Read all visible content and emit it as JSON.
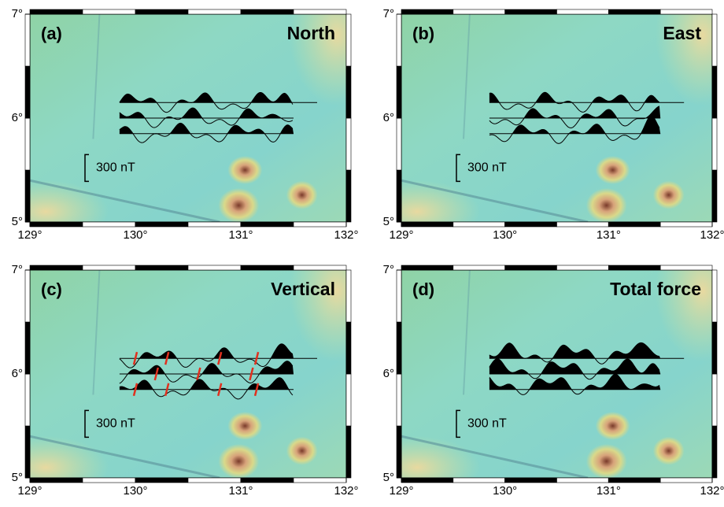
{
  "panels": [
    {
      "label": "(a)",
      "title": "North",
      "scale_label": "300 nT"
    },
    {
      "label": "(b)",
      "title": "East",
      "scale_label": "300 nT"
    },
    {
      "label": "(c)",
      "title": "Vertical",
      "scale_label": "300 nT"
    },
    {
      "label": "(d)",
      "title": "Total force",
      "scale_label": "300 nT"
    }
  ],
  "axes": {
    "xticks": [
      {
        "value": 129,
        "label": "129°"
      },
      {
        "value": 130,
        "label": "130°"
      },
      {
        "value": 131,
        "label": "131°"
      },
      {
        "value": 132,
        "label": "132°"
      }
    ],
    "yticks": [
      {
        "value": 5,
        "label": "5°"
      },
      {
        "value": 6,
        "label": "6°"
      },
      {
        "value": 7,
        "label": "7°"
      }
    ]
  }
}
